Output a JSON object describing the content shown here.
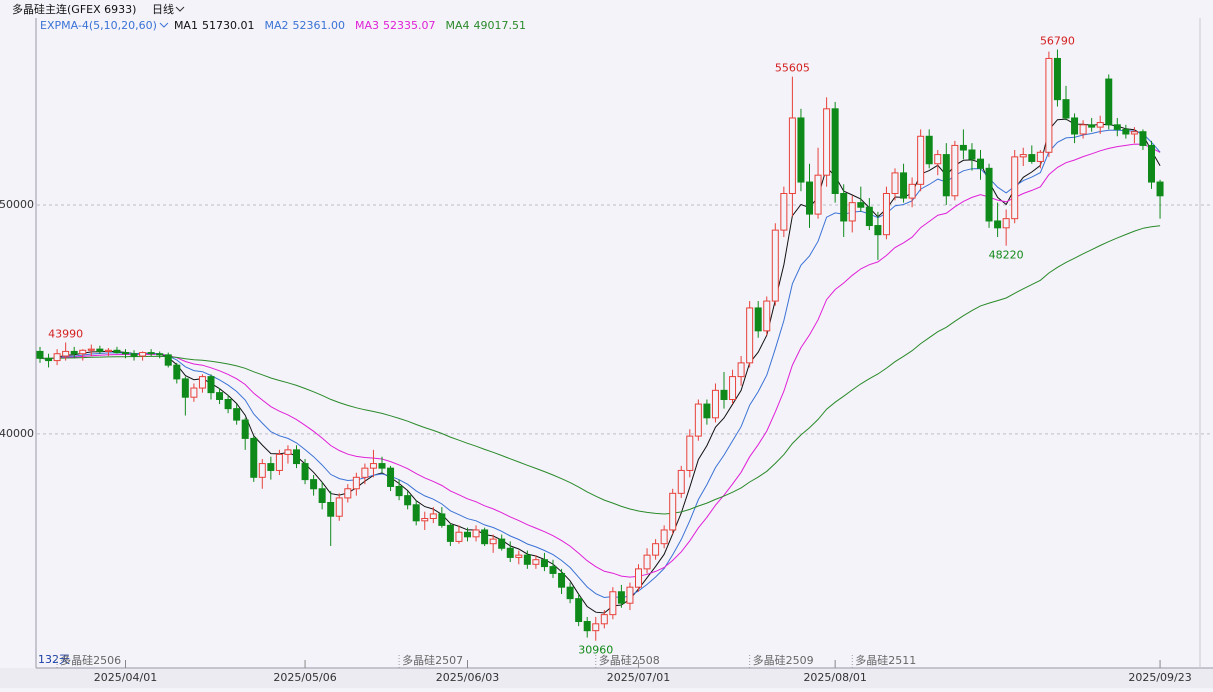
{
  "chart_data": {
    "type": "candlestick",
    "title": "多晶硅主连(GFEX 6933)",
    "period": "日线",
    "indicator": "EXPMA-4(5,10,20,60)",
    "ma_periods": [
      5,
      10,
      20,
      60
    ],
    "indicators": [
      {
        "name": "MA1",
        "value": 51730.01,
        "color": "#111111"
      },
      {
        "name": "MA2",
        "value": {
          "value": 52361,
          "label": "52361.00"
        },
        "color": "#3b73d6"
      },
      {
        "name": "MA3",
        "value": 52335.07,
        "color": "#e020d8"
      },
      {
        "name": "MA4",
        "value": 49017.51,
        "color": "#2a8a2a"
      }
    ],
    "count_label": "132天",
    "up_color": "#e8413a",
    "down_color": "#0f8a1a",
    "ylim": [
      29900,
      58080
    ],
    "yticks": [
      40000,
      50000
    ],
    "grid": true,
    "categories": [
      null,
      null,
      null,
      null,
      null,
      null,
      null,
      null,
      null,
      null,
      "2025/04/01",
      null,
      null,
      null,
      null,
      null,
      null,
      null,
      null,
      null,
      null,
      null,
      null,
      null,
      null,
      null,
      null,
      null,
      null,
      null,
      null,
      "2025/05/06",
      null,
      null,
      null,
      null,
      null,
      null,
      null,
      null,
      null,
      null,
      null,
      null,
      null,
      null,
      null,
      null,
      null,
      null,
      "2025/06/03",
      null,
      null,
      null,
      null,
      null,
      null,
      null,
      null,
      null,
      null,
      null,
      null,
      null,
      null,
      null,
      null,
      null,
      null,
      null,
      "2025/07/01",
      null,
      null,
      null,
      null,
      null,
      null,
      null,
      null,
      null,
      null,
      null,
      null,
      null,
      null,
      null,
      null,
      null,
      null,
      null,
      null,
      null,
      null,
      "2025/08/01",
      null,
      null,
      null,
      null,
      null,
      null,
      null,
      null,
      null,
      null,
      null,
      null,
      null,
      null,
      null,
      null,
      null,
      null,
      null,
      null,
      null,
      null,
      null,
      null,
      null,
      null,
      null,
      null,
      null,
      null,
      null,
      null,
      null,
      null,
      null,
      null,
      null,
      "2025/09/23"
    ],
    "contracts": [
      null,
      null,
      "多晶硅2506",
      null,
      null,
      null,
      null,
      null,
      null,
      null,
      null,
      null,
      null,
      null,
      null,
      null,
      null,
      null,
      null,
      null,
      null,
      null,
      null,
      null,
      null,
      null,
      null,
      null,
      null,
      null,
      null,
      null,
      null,
      null,
      null,
      null,
      null,
      null,
      null,
      null,
      null,
      null,
      "多晶硅2507",
      null,
      null,
      null,
      null,
      null,
      null,
      null,
      null,
      null,
      null,
      null,
      null,
      null,
      null,
      null,
      null,
      null,
      null,
      null,
      null,
      null,
      null,
      "多晶硅2508",
      null,
      null,
      null,
      null,
      null,
      null,
      null,
      null,
      null,
      null,
      null,
      null,
      null,
      null,
      null,
      null,
      null,
      "多晶硅2509",
      null,
      null,
      null,
      null,
      null,
      null,
      null,
      null,
      null,
      null,
      null,
      "多晶硅2511",
      null,
      null,
      null,
      null,
      null,
      null,
      null,
      null,
      null,
      null,
      null,
      null,
      null,
      null,
      null,
      null,
      null,
      null,
      null,
      null,
      null,
      null,
      null,
      null,
      null,
      null,
      null,
      null,
      null,
      null,
      null,
      null,
      null,
      null,
      null
    ],
    "candles": [
      [
        43600,
        43800,
        43100,
        43300
      ],
      [
        43300,
        43500,
        42900,
        43200
      ],
      [
        43200,
        43700,
        43000,
        43500
      ],
      [
        43400,
        43990,
        43200,
        43600
      ],
      [
        43600,
        43800,
        43300,
        43500
      ],
      [
        43500,
        43700,
        43200,
        43650
      ],
      [
        43650,
        43900,
        43400,
        43700
      ],
      [
        43700,
        43850,
        43500,
        43600
      ],
      [
        43600,
        43750,
        43400,
        43650
      ],
      [
        43650,
        43800,
        43500,
        43550
      ],
      [
        43550,
        43700,
        43300,
        43500
      ],
      [
        43500,
        43650,
        43200,
        43400
      ],
      [
        43400,
        43600,
        43200,
        43550
      ],
      [
        43550,
        43700,
        43400,
        43500
      ],
      [
        43500,
        43600,
        43300,
        43450
      ],
      [
        43450,
        43550,
        42900,
        43000
      ],
      [
        43000,
        43100,
        42200,
        42400
      ],
      [
        42400,
        42500,
        40800,
        41600
      ],
      [
        41600,
        42200,
        41400,
        42000
      ],
      [
        42000,
        42600,
        41800,
        42500
      ],
      [
        42500,
        42600,
        41500,
        41800
      ],
      [
        41800,
        42000,
        41300,
        41500
      ],
      [
        41500,
        41700,
        40900,
        41100
      ],
      [
        41100,
        41300,
        40400,
        40600
      ],
      [
        40600,
        40700,
        39300,
        39800
      ],
      [
        39800,
        39900,
        37900,
        38100
      ],
      [
        38100,
        38900,
        37600,
        38700
      ],
      [
        38700,
        39000,
        38000,
        38400
      ],
      [
        38400,
        39300,
        38200,
        39100
      ],
      [
        39100,
        39500,
        38700,
        39300
      ],
      [
        39300,
        39500,
        38500,
        38700
      ],
      [
        38700,
        38900,
        37800,
        38000
      ],
      [
        38000,
        38200,
        37300,
        37600
      ],
      [
        37600,
        37900,
        36700,
        37000
      ],
      [
        37000,
        37500,
        35100,
        36400
      ],
      [
        36400,
        37400,
        36200,
        37200
      ],
      [
        37200,
        37800,
        37000,
        37600
      ],
      [
        37600,
        38300,
        37300,
        38100
      ],
      [
        38100,
        38700,
        37800,
        38500
      ],
      [
        38500,
        39300,
        38100,
        38700
      ],
      [
        38700,
        39000,
        38300,
        38500
      ],
      [
        38500,
        38600,
        37500,
        37700
      ],
      [
        37700,
        38000,
        37100,
        37300
      ],
      [
        37300,
        37500,
        36700,
        36900
      ],
      [
        36900,
        37100,
        36000,
        36200
      ],
      [
        36200,
        36600,
        35800,
        36300
      ],
      [
        36300,
        36800,
        36100,
        36500
      ],
      [
        36500,
        36800,
        35900,
        36000
      ],
      [
        36000,
        36100,
        35100,
        35300
      ],
      [
        35300,
        36000,
        35200,
        35700
      ],
      [
        35700,
        35900,
        35300,
        35500
      ],
      [
        35500,
        36000,
        35300,
        35800
      ],
      [
        35800,
        35900,
        35100,
        35200
      ],
      [
        35200,
        35600,
        34800,
        35400
      ],
      [
        35400,
        35600,
        34900,
        35000
      ],
      [
        35000,
        35300,
        34400,
        34600
      ],
      [
        34600,
        34900,
        34300,
        34700
      ],
      [
        34700,
        34900,
        34100,
        34300
      ],
      [
        34300,
        34700,
        34100,
        34500
      ],
      [
        34500,
        34800,
        34000,
        34200
      ],
      [
        34200,
        34500,
        33700,
        33900
      ],
      [
        33900,
        34100,
        33000,
        33300
      ],
      [
        33300,
        33500,
        32600,
        32800
      ],
      [
        32800,
        33000,
        31600,
        31800
      ],
      [
        31800,
        32000,
        31100,
        31400
      ],
      [
        31400,
        32000,
        30960,
        31700
      ],
      [
        31700,
        32300,
        31500,
        32100
      ],
      [
        32100,
        33300,
        31900,
        33100
      ],
      [
        33100,
        33400,
        32400,
        32600
      ],
      [
        32600,
        33500,
        32300,
        33300
      ],
      [
        33300,
        34300,
        33100,
        34100
      ],
      [
        34100,
        35000,
        33900,
        34700
      ],
      [
        34700,
        35400,
        34500,
        35200
      ],
      [
        35200,
        36000,
        35000,
        35800
      ],
      [
        35800,
        37600,
        35600,
        37400
      ],
      [
        37400,
        38600,
        37200,
        38400
      ],
      [
        38400,
        40200,
        38100,
        39900
      ],
      [
        39900,
        41500,
        39700,
        41300
      ],
      [
        41300,
        41500,
        40400,
        40700
      ],
      [
        40700,
        42200,
        40500,
        41900
      ],
      [
        41900,
        42700,
        41100,
        41500
      ],
      [
        41500,
        42800,
        41300,
        42500
      ],
      [
        42500,
        43400,
        42100,
        43100
      ],
      [
        43100,
        45800,
        42900,
        45500
      ],
      [
        45500,
        45800,
        44200,
        44500
      ],
      [
        44500,
        46000,
        44300,
        45800
      ],
      [
        45800,
        49200,
        45600,
        48900
      ],
      [
        48900,
        50800,
        48600,
        50500
      ],
      [
        50500,
        55605,
        49500,
        53800
      ],
      [
        53800,
        54200,
        50600,
        51000
      ],
      [
        51000,
        51800,
        49000,
        49600
      ],
      [
        49600,
        52500,
        49400,
        51300
      ],
      [
        51300,
        54700,
        50800,
        54200
      ],
      [
        54200,
        54500,
        50100,
        50500
      ],
      [
        50500,
        50900,
        48600,
        49300
      ],
      [
        49300,
        50400,
        48800,
        50100
      ],
      [
        50100,
        50800,
        49700,
        49900
      ],
      [
        49900,
        50300,
        48900,
        49100
      ],
      [
        49100,
        49700,
        47600,
        48700
      ],
      [
        48700,
        50800,
        48500,
        50500
      ],
      [
        50500,
        51600,
        50200,
        51400
      ],
      [
        51400,
        51800,
        50100,
        50300
      ],
      [
        50300,
        51200,
        49900,
        50900
      ],
      [
        50900,
        53300,
        50600,
        53000
      ],
      [
        53000,
        53300,
        51600,
        51800
      ],
      [
        51800,
        52400,
        51300,
        52200
      ],
      [
        52200,
        52700,
        50000,
        50400
      ],
      [
        50400,
        52800,
        50200,
        52600
      ],
      [
        52600,
        53300,
        52000,
        52400
      ],
      [
        52400,
        52700,
        51500,
        52000
      ],
      [
        52000,
        52400,
        51100,
        51600
      ],
      [
        51600,
        51800,
        49000,
        49300
      ],
      [
        49300,
        50100,
        48600,
        49000
      ],
      [
        49000,
        49800,
        48220,
        49400
      ],
      [
        49400,
        52400,
        49200,
        52100
      ],
      [
        52100,
        52500,
        51700,
        52200
      ],
      [
        52200,
        52600,
        51800,
        51900
      ],
      [
        51900,
        52400,
        51600,
        52300
      ],
      [
        52300,
        56700,
        52100,
        56400
      ],
      [
        56400,
        56790,
        54300,
        54600
      ],
      [
        54600,
        55200,
        53700,
        53800
      ],
      [
        53800,
        54000,
        52700,
        53100
      ],
      [
        53100,
        53700,
        52900,
        53500
      ],
      [
        53500,
        53800,
        53200,
        53400
      ],
      [
        53400,
        53900,
        53100,
        53600
      ],
      [
        55500,
        55700,
        53300,
        53500
      ],
      [
        53500,
        53800,
        53000,
        53300
      ],
      [
        53300,
        53500,
        52900,
        53100
      ],
      [
        53100,
        53400,
        52700,
        53200
      ],
      [
        53200,
        53300,
        52400,
        52600
      ],
      [
        52600,
        52800,
        50700,
        51000
      ],
      [
        51000,
        51100,
        49400,
        50400
      ]
    ]
  }
}
